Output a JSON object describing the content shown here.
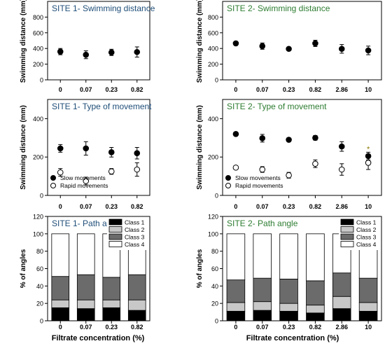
{
  "figure": {
    "x_axis_label": "Filtrate concentration (%)",
    "colors": {
      "site1_title": "#1f4e79",
      "site2_title": "#2e7d32",
      "asterisk": "#8a7a00",
      "class1": "#000000",
      "class2": "#c8c8c8",
      "class3": "#6b6b6b",
      "class4": "#ffffff"
    }
  },
  "chart_data": [
    {
      "id": "site1-swim",
      "type": "scatter",
      "title": "SITE 1- Swimming distance",
      "categories": [
        "0",
        "0.07",
        "0.23",
        "0.82"
      ],
      "ylabel": "Swimming distance (mm)",
      "ylim": [
        0,
        1000
      ],
      "yticks": [
        0,
        200,
        400,
        600,
        800
      ],
      "series": [
        {
          "marker": "filled",
          "values": [
            360,
            320,
            350,
            355
          ],
          "errors": [
            40,
            50,
            40,
            65
          ]
        }
      ],
      "legend": []
    },
    {
      "id": "site2-swim",
      "type": "scatter",
      "title": "SITE 2- Swimming distance",
      "categories": [
        "0",
        "0.07",
        "0.23",
        "0.82",
        "2.86",
        "10"
      ],
      "ylabel": "Swimming distance (mm)",
      "ylim": [
        0,
        1000
      ],
      "yticks": [
        0,
        200,
        400,
        600,
        800
      ],
      "series": [
        {
          "marker": "filled",
          "values": [
            465,
            430,
            395,
            465,
            395,
            375
          ],
          "errors": [
            25,
            40,
            20,
            40,
            55,
            55
          ]
        }
      ],
      "legend": []
    },
    {
      "id": "site1-move",
      "type": "scatter",
      "title": "SITE 1- Type of movement",
      "categories": [
        "0",
        "0.07",
        "0.23",
        "0.82"
      ],
      "ylabel": "Swimming distance (mm)",
      "ylim": [
        0,
        500
      ],
      "yticks": [
        0,
        200,
        400
      ],
      "series": [
        {
          "name": "Slow movements",
          "marker": "filled",
          "values": [
            245,
            245,
            225,
            220
          ],
          "errors": [
            20,
            35,
            25,
            30
          ]
        },
        {
          "name": "Rapid movements",
          "marker": "open",
          "values": [
            120,
            75,
            125,
            135
          ],
          "errors": [
            20,
            20,
            15,
            35
          ]
        }
      ],
      "legend": [
        "Slow movements",
        "Rapid movements"
      ],
      "legend_position": "bottom-left"
    },
    {
      "id": "site2-move",
      "type": "scatter",
      "title": "SITE 2- Type of movement",
      "categories": [
        "0",
        "0.07",
        "0.23",
        "0.82",
        "2.86",
        "10"
      ],
      "ylabel": "Swimming distance (mm)",
      "ylim": [
        0,
        500
      ],
      "yticks": [
        0,
        200,
        400
      ],
      "series": [
        {
          "name": "Slow movements",
          "marker": "filled",
          "values": [
            320,
            298,
            290,
            300,
            255,
            205
          ],
          "errors": [
            10,
            20,
            10,
            12,
            25,
            20
          ]
        },
        {
          "name": "Rapid movements",
          "marker": "open",
          "values": [
            145,
            135,
            105,
            165,
            135,
            170
          ],
          "errors": [
            10,
            15,
            15,
            20,
            30,
            35
          ]
        }
      ],
      "legend": [
        "Slow movements",
        "Rapid movements"
      ],
      "legend_position": "bottom-left",
      "annotation": {
        "text": "*",
        "category_index": 5
      }
    },
    {
      "id": "site1-angle",
      "type": "bar",
      "stacked": true,
      "title": "SITE 1- Path angle",
      "categories": [
        "0",
        "0.07",
        "0.23",
        "0.82"
      ],
      "ylabel": "% of angles",
      "ylim": [
        0,
        120
      ],
      "yticks": [
        0,
        20,
        40,
        60,
        80,
        100,
        120
      ],
      "series": [
        {
          "name": "Class 1",
          "values": [
            15,
            14,
            15,
            12
          ]
        },
        {
          "name": "Class 2",
          "values": [
            9,
            10,
            9,
            12
          ]
        },
        {
          "name": "Class 3",
          "values": [
            27,
            29,
            26,
            29
          ]
        },
        {
          "name": "Class 4",
          "values": [
            49,
            47,
            50,
            47
          ]
        }
      ],
      "legend": [
        "Class 1",
        "Class 2",
        "Class 3",
        "Class 4"
      ],
      "legend_position": "top-right"
    },
    {
      "id": "site2-angle",
      "type": "bar",
      "stacked": true,
      "title": "SITE 2- Path angle",
      "categories": [
        "0",
        "0.07",
        "0.23",
        "0.82",
        "2.86",
        "10"
      ],
      "ylabel": "% of angles",
      "ylim": [
        0,
        120
      ],
      "yticks": [
        0,
        20,
        40,
        60,
        80,
        100,
        120
      ],
      "series": [
        {
          "name": "Class 1",
          "values": [
            11,
            12,
            11,
            9,
            14,
            11
          ]
        },
        {
          "name": "Class 2",
          "values": [
            10,
            10,
            9,
            9,
            14,
            10
          ]
        },
        {
          "name": "Class 3",
          "values": [
            26,
            27,
            28,
            28,
            27,
            28
          ]
        },
        {
          "name": "Class 4",
          "values": [
            53,
            51,
            52,
            54,
            45,
            51
          ]
        }
      ],
      "legend": [
        "Class 1",
        "Class 2",
        "Class 3",
        "Class 4"
      ],
      "legend_position": "top-right"
    }
  ]
}
